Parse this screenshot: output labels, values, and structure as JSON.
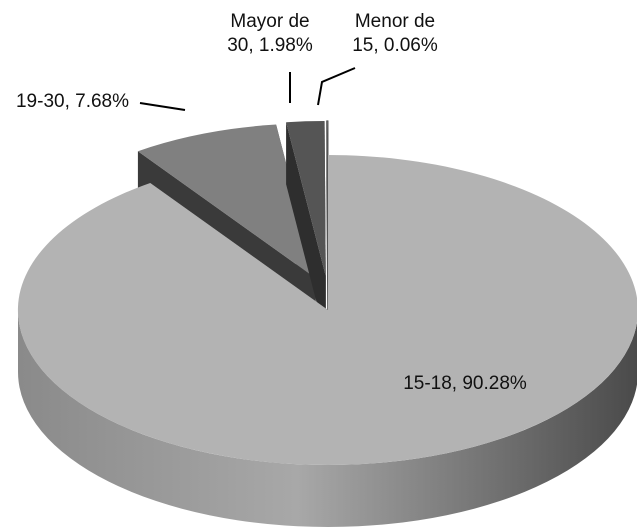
{
  "chart_data": {
    "type": "pie",
    "categories": [
      "15-18",
      "19-30",
      "Mayor de 30",
      "Menor de 15"
    ],
    "values": [
      90.28,
      7.68,
      1.98,
      0.06
    ],
    "value_labels": [
      "15-18, 90.28%",
      "19-30, 7.68%",
      "Mayor de 30, 1.98%",
      "Menor de 15, 0.06%"
    ],
    "colors": [
      "#b3b3b3",
      "#808080",
      "#555555",
      "#ffffff"
    ],
    "three_d": true
  }
}
